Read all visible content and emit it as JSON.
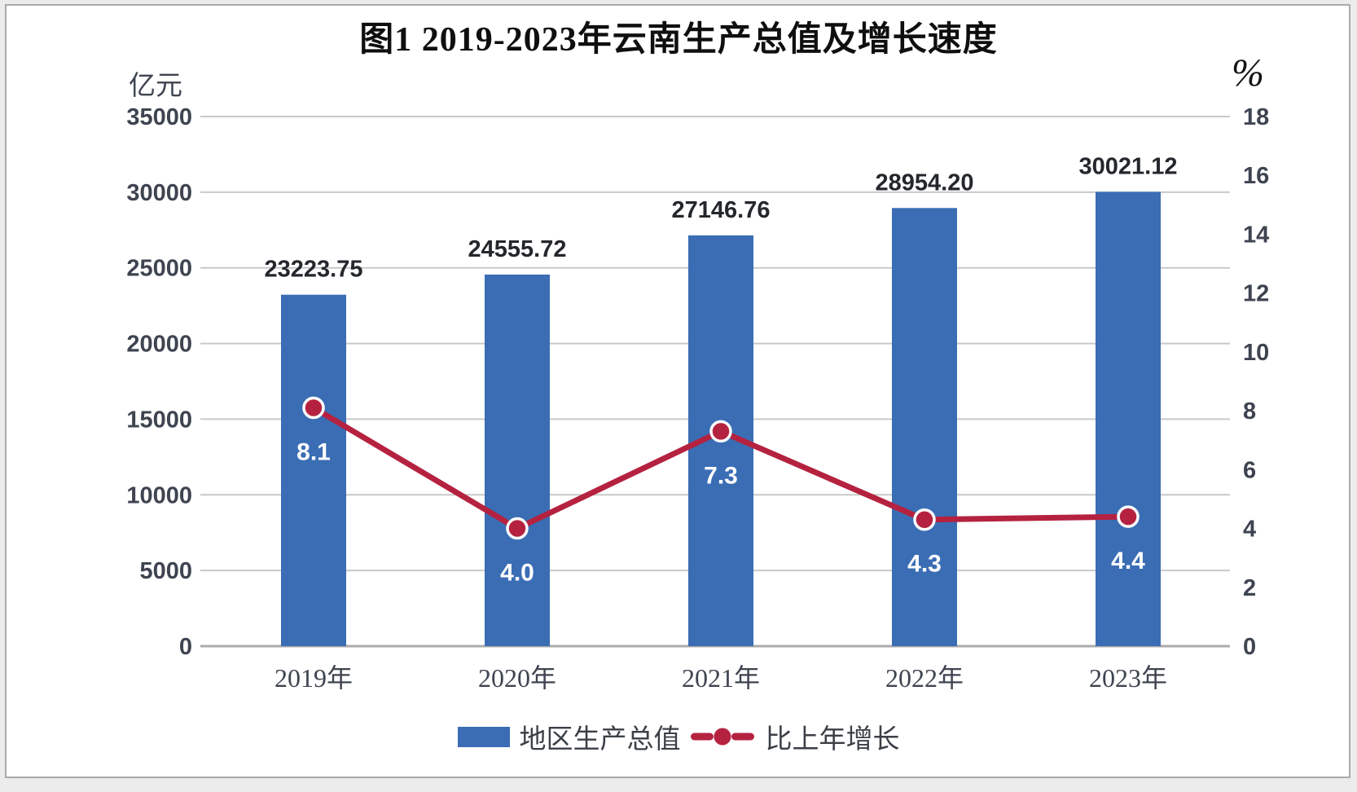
{
  "chart_data": {
    "type": "bar",
    "subtype": "combo-bar-line-dual-axis",
    "title": "图1 2019-2023年云南生产总值及增长速度",
    "categories": [
      "2019年",
      "2020年",
      "2021年",
      "2022年",
      "2023年"
    ],
    "series": [
      {
        "name": "地区生产总值",
        "type": "bar",
        "axis": "left",
        "color": "#3a6db4",
        "values": [
          23223.75,
          24555.72,
          27146.76,
          28954.2,
          30021.12
        ],
        "labels": [
          "23223.75",
          "24555.72",
          "27146.76",
          "28954.20",
          "30021.12"
        ]
      },
      {
        "name": "比上年增长",
        "type": "line",
        "axis": "right",
        "color": "#b52240",
        "marker": "circle-white-ring",
        "values": [
          8.1,
          4.0,
          7.3,
          4.3,
          4.4
        ],
        "labels": [
          "8.1",
          "4.0",
          "7.3",
          "4.3",
          "4.4"
        ]
      }
    ],
    "left_axis": {
      "label": "亿元",
      "min": 0,
      "max": 35000,
      "step": 5000,
      "ticks": [
        "35000",
        "30000",
        "25000",
        "20000",
        "15000",
        "10000",
        "5000",
        "0"
      ]
    },
    "right_axis": {
      "label": "%",
      "min": 0,
      "max": 18,
      "step": 2,
      "ticks": [
        "18",
        "16",
        "14",
        "12",
        "10",
        "8",
        "6",
        "4",
        "2",
        "0"
      ]
    },
    "grid": true,
    "legend_position": "bottom",
    "colors": {
      "grid": "#c9c9c9",
      "baseline": "#ababab",
      "axis_text": "#3e4450",
      "bar_value_label": "#24272c",
      "line_value_label": "#ffffff"
    }
  }
}
